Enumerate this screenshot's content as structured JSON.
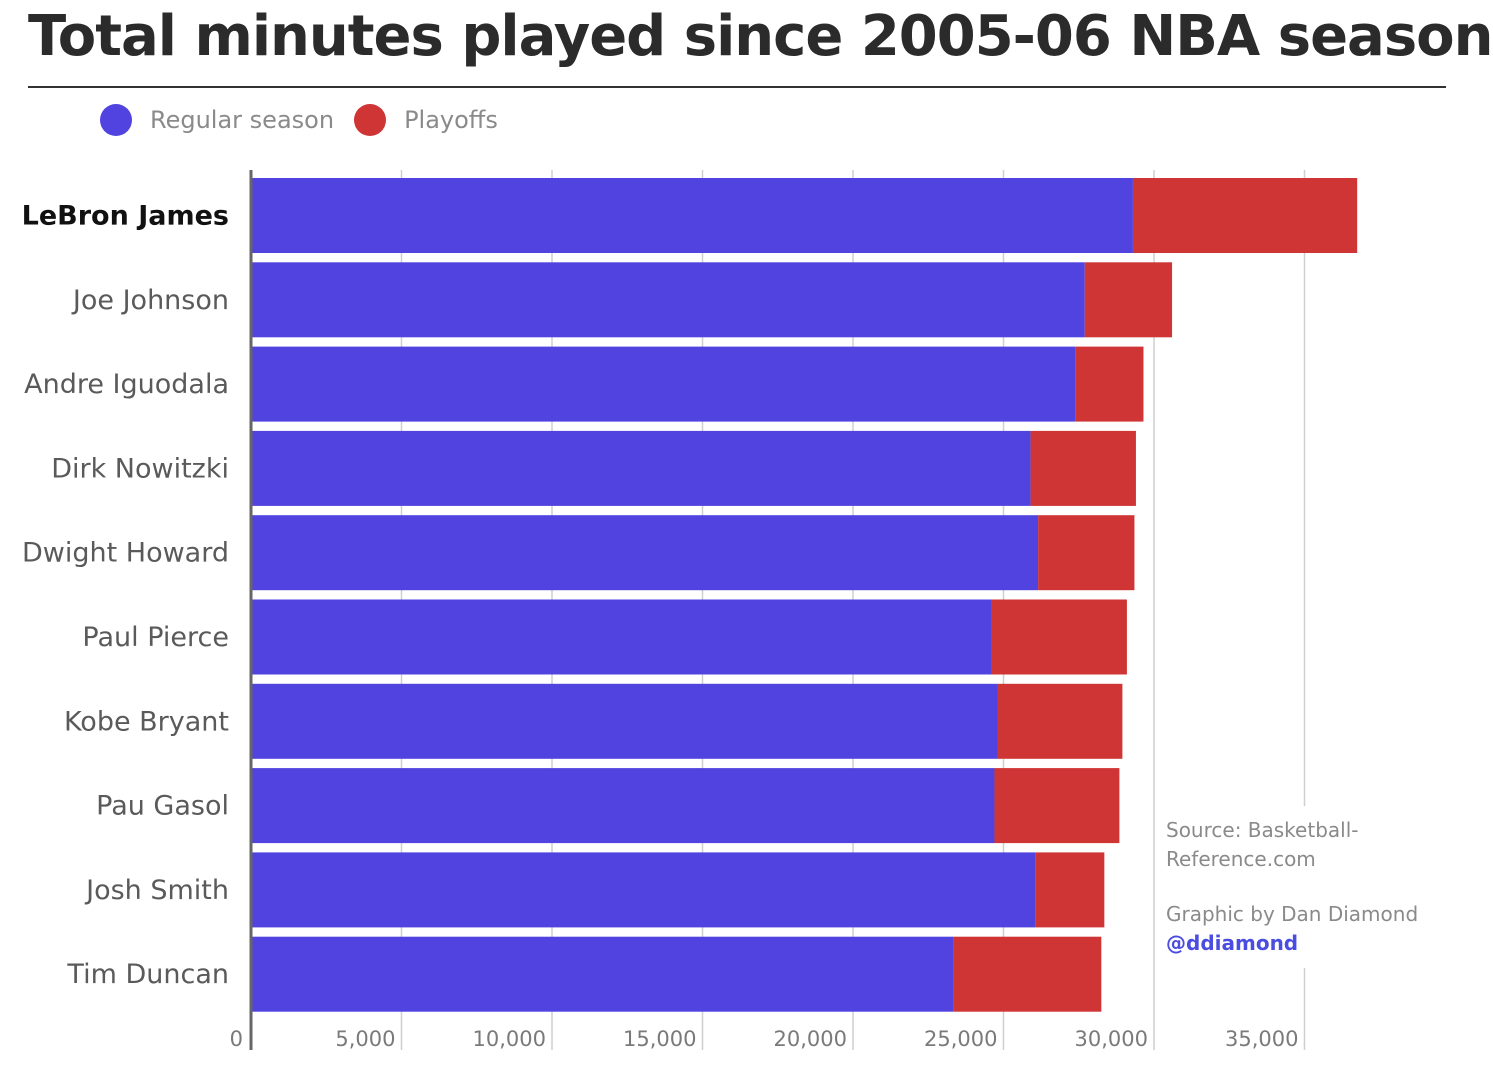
{
  "header": {
    "title": "Total minutes played since 2005-06 NBA season"
  },
  "legend": {
    "items": [
      {
        "label": "Regular season",
        "color": "#5143e0"
      },
      {
        "label": "Playoffs",
        "color": "#cf3535"
      }
    ]
  },
  "annotation": {
    "source_line1": "Source: Basketball-",
    "source_line2": "Reference.com",
    "credit": "Graphic by Dan Diamond",
    "handle": "@ddiamond"
  },
  "chart_data": {
    "type": "bar",
    "orientation": "horizontal",
    "stacked": true,
    "title": "Total minutes played since 2005-06 NBA season",
    "categories": [
      "LeBron James",
      "Joe Johnson",
      "Andre Iguodala",
      "Dirk Nowitzki",
      "Dwight Howard",
      "Paul Pierce",
      "Kobe Bryant",
      "Pau Gasol",
      "Josh Smith",
      "Tim Duncan"
    ],
    "series": [
      {
        "name": "Regular season",
        "color": "#5143e0",
        "values": [
          29300,
          27700,
          27400,
          25900,
          26150,
          24600,
          24800,
          24700,
          26050,
          23350
        ]
      },
      {
        "name": "Playoffs",
        "color": "#cf3535",
        "values": [
          7450,
          2900,
          2250,
          3500,
          3200,
          4500,
          4150,
          4150,
          2300,
          4900
        ]
      }
    ],
    "xlim": [
      0,
      37000
    ],
    "x_ticks": [
      0,
      5000,
      10000,
      15000,
      20000,
      25000,
      30000,
      35000
    ],
    "x_tick_labels": [
      "0",
      "5,000",
      "10,000",
      "15,000",
      "20,000",
      "25,000",
      "30,000",
      "35,000"
    ],
    "grid": true,
    "legend_position": "top-left",
    "highlighted_category": "LeBron James"
  }
}
